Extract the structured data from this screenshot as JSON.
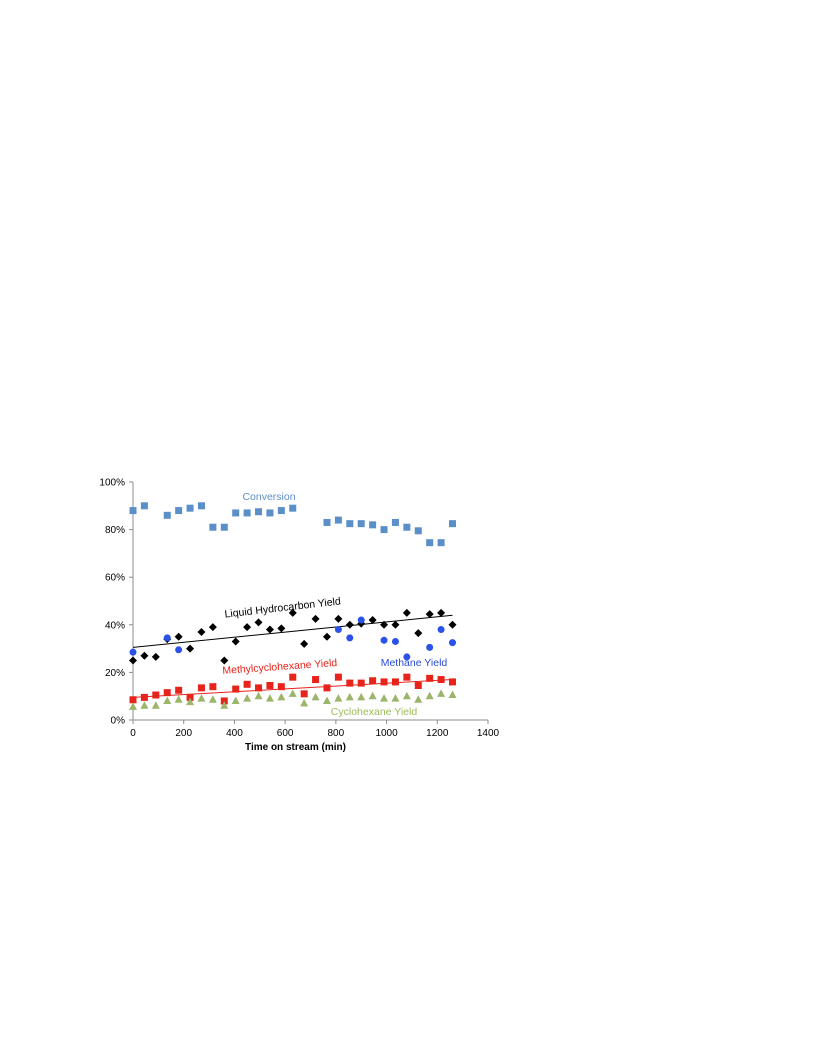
{
  "chart_data": {
    "type": "scatter",
    "title": "",
    "xlabel": "Time on stream (min)",
    "ylabel": "",
    "xlim": [
      0,
      1400
    ],
    "ylim": [
      0,
      100
    ],
    "x_ticks": [
      0,
      200,
      400,
      600,
      800,
      1000,
      1200,
      1400
    ],
    "y_ticks": [
      0,
      20,
      40,
      60,
      80,
      100
    ],
    "y_tick_suffix": "%",
    "grid": false,
    "legend": "none",
    "series": [
      {
        "name": "Conversion",
        "marker": "square",
        "color": "#5B8FC9",
        "label_color": "#5B8FC9",
        "points": [
          [
            0,
            88
          ],
          [
            45,
            90
          ],
          [
            135,
            86
          ],
          [
            180,
            88
          ],
          [
            225,
            89
          ],
          [
            270,
            90
          ],
          [
            315,
            81
          ],
          [
            360,
            81
          ],
          [
            405,
            87
          ],
          [
            450,
            87
          ],
          [
            495,
            87.5
          ],
          [
            540,
            87
          ],
          [
            585,
            88
          ],
          [
            630,
            89
          ],
          [
            765,
            83
          ],
          [
            810,
            84
          ],
          [
            855,
            82.5
          ],
          [
            900,
            82.5
          ],
          [
            945,
            82
          ],
          [
            990,
            80
          ],
          [
            1035,
            83
          ],
          [
            1080,
            81
          ],
          [
            1125,
            79.5
          ],
          [
            1170,
            74.5
          ],
          [
            1215,
            74.5
          ],
          [
            1260,
            82.5
          ]
        ]
      },
      {
        "name": "Liquid Hydrocarbon Yield",
        "marker": "diamond",
        "color": "#000000",
        "label_color": "#000000",
        "points": [
          [
            0,
            25
          ],
          [
            45,
            27
          ],
          [
            90,
            26.5
          ],
          [
            135,
            34
          ],
          [
            180,
            35
          ],
          [
            225,
            30
          ],
          [
            270,
            37
          ],
          [
            315,
            39
          ],
          [
            360,
            25
          ],
          [
            405,
            33
          ],
          [
            450,
            39
          ],
          [
            495,
            41
          ],
          [
            540,
            38
          ],
          [
            585,
            38.5
          ],
          [
            630,
            45
          ],
          [
            675,
            32
          ],
          [
            720,
            42.5
          ],
          [
            765,
            35
          ],
          [
            810,
            42.5
          ],
          [
            855,
            40
          ],
          [
            900,
            40.5
          ],
          [
            945,
            42
          ],
          [
            990,
            40
          ],
          [
            1035,
            40
          ],
          [
            1080,
            45
          ],
          [
            1125,
            36.5
          ],
          [
            1170,
            44.5
          ],
          [
            1215,
            45
          ],
          [
            1260,
            40
          ]
        ],
        "trendline": [
          [
            0,
            30.5
          ],
          [
            1260,
            44
          ]
        ]
      },
      {
        "name": "Methane Yield",
        "marker": "circle",
        "color": "#2A52E8",
        "label_color": "#2A4BD7",
        "points": [
          [
            0,
            28.5
          ],
          [
            135,
            34.5
          ],
          [
            180,
            29.5
          ],
          [
            810,
            38
          ],
          [
            855,
            34.5
          ],
          [
            900,
            42
          ],
          [
            990,
            33.5
          ],
          [
            1035,
            33
          ],
          [
            1080,
            26.5
          ],
          [
            1170,
            30.5
          ],
          [
            1215,
            38
          ],
          [
            1260,
            32.5
          ]
        ]
      },
      {
        "name": "Methylcyclohexane Yield",
        "marker": "square",
        "color": "#E8231B",
        "label_color": "#E8231B",
        "points": [
          [
            0,
            8.5
          ],
          [
            45,
            9.5
          ],
          [
            90,
            10.5
          ],
          [
            135,
            11.5
          ],
          [
            180,
            12.5
          ],
          [
            225,
            9.5
          ],
          [
            270,
            13.5
          ],
          [
            315,
            14
          ],
          [
            360,
            8
          ],
          [
            405,
            13
          ],
          [
            450,
            15
          ],
          [
            495,
            13.5
          ],
          [
            540,
            14.5
          ],
          [
            585,
            14
          ],
          [
            630,
            18
          ],
          [
            675,
            11
          ],
          [
            720,
            17
          ],
          [
            765,
            13.5
          ],
          [
            810,
            18
          ],
          [
            855,
            15.5
          ],
          [
            900,
            15.5
          ],
          [
            945,
            16.5
          ],
          [
            990,
            16
          ],
          [
            1035,
            16
          ],
          [
            1080,
            18
          ],
          [
            1125,
            14.5
          ],
          [
            1170,
            17.5
          ],
          [
            1215,
            17
          ],
          [
            1260,
            16
          ]
        ],
        "trendline": [
          [
            0,
            9.5
          ],
          [
            1260,
            17
          ]
        ]
      },
      {
        "name": "Cyclohexane Yield",
        "marker": "triangle",
        "color": "#9BB56A",
        "label_color": "#9BBB59",
        "points": [
          [
            0,
            5.5
          ],
          [
            45,
            6
          ],
          [
            90,
            6
          ],
          [
            135,
            8
          ],
          [
            180,
            8.5
          ],
          [
            225,
            7.5
          ],
          [
            270,
            9
          ],
          [
            315,
            8.5
          ],
          [
            360,
            6
          ],
          [
            405,
            8
          ],
          [
            450,
            9
          ],
          [
            495,
            10
          ],
          [
            540,
            9
          ],
          [
            585,
            9.5
          ],
          [
            630,
            11
          ],
          [
            675,
            7
          ],
          [
            720,
            9.5
          ],
          [
            765,
            8
          ],
          [
            810,
            9
          ],
          [
            855,
            9.5
          ],
          [
            900,
            9.5
          ],
          [
            945,
            10
          ],
          [
            990,
            9
          ],
          [
            1035,
            9
          ],
          [
            1080,
            10
          ],
          [
            1125,
            8.5
          ],
          [
            1170,
            10
          ],
          [
            1215,
            11
          ],
          [
            1260,
            10.5
          ]
        ]
      }
    ]
  }
}
